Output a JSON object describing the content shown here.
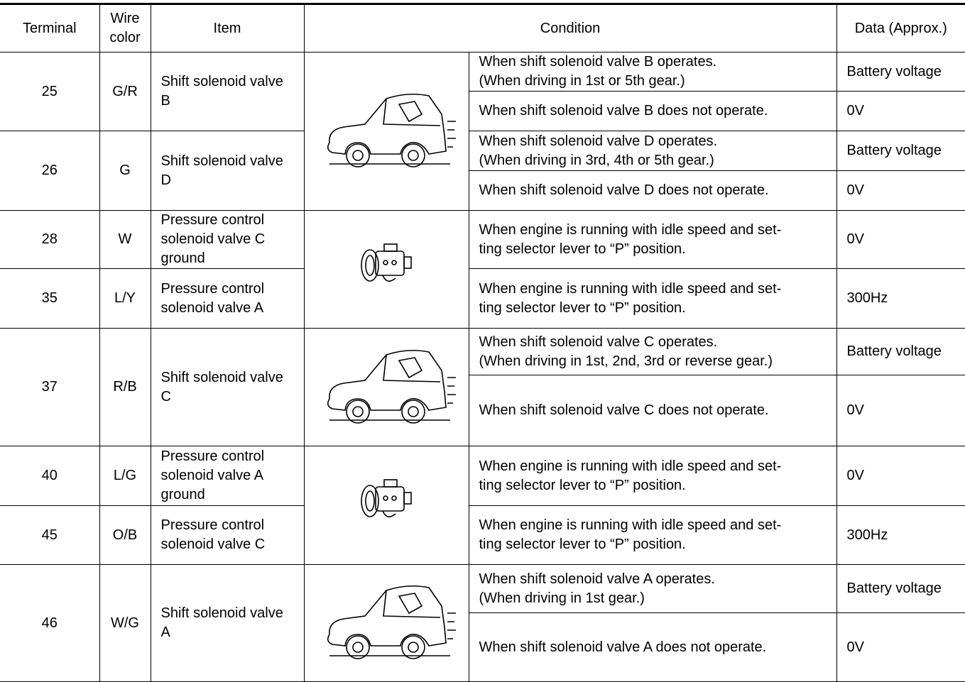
{
  "table": {
    "header": [
      "Terminal",
      "Wire color",
      "Item",
      "Condition",
      "Data (Approx.)"
    ],
    "rows": [
      {
        "terminal": "25",
        "wire_color": "G/R",
        "item": "Shift solenoid valve B",
        "conditions": [
          {
            "text": "When shift solenoid valve B operates.\n(When driving in 1st or 5th gear.)",
            "data": "Battery voltage"
          },
          {
            "text": "When shift solenoid valve B does not operate.",
            "data": "0V"
          }
        ]
      },
      {
        "terminal": "26",
        "wire_color": "G",
        "item": "Shift solenoid valve D",
        "conditions": [
          {
            "text": "When shift solenoid valve D operates.\n(When driving in 3rd, 4th or 5th gear.)",
            "data": "Battery voltage"
          },
          {
            "text": "When shift solenoid valve D does not operate.",
            "data": "0V"
          }
        ]
      },
      {
        "terminal": "28",
        "wire_color": "W",
        "item": "Pressure control solenoid valve C ground",
        "conditions": [
          {
            "text": "When engine is running with idle speed and set-\nting selector lever to “P” position.",
            "data": "0V"
          }
        ]
      },
      {
        "terminal": "35",
        "wire_color": "L/Y",
        "item": "Pressure control solenoid valve A",
        "conditions": [
          {
            "text": "When engine is running with idle speed and set-\nting selector lever to “P” position.",
            "data": "300Hz"
          }
        ]
      },
      {
        "terminal": "37",
        "wire_color": "R/B",
        "item": "Shift solenoid valve C",
        "conditions": [
          {
            "text": "When shift solenoid valve C operates.\n(When driving in 1st, 2nd, 3rd or reverse gear.)",
            "data": "Battery voltage"
          },
          {
            "text": "When shift solenoid valve C does not operate.",
            "data": "0V"
          }
        ]
      },
      {
        "terminal": "40",
        "wire_color": "L/G",
        "item": "Pressure control solenoid valve A ground",
        "conditions": [
          {
            "text": "When engine is running with idle speed and set-\nting selector lever to “P” position.",
            "data": "0V"
          }
        ]
      },
      {
        "terminal": "45",
        "wire_color": "O/B",
        "item": "Pressure control solenoid valve C",
        "conditions": [
          {
            "text": "When engine is running with idle speed and set-\nting selector lever to “P” position.",
            "data": "300Hz"
          }
        ]
      },
      {
        "terminal": "46",
        "wire_color": "W/G",
        "item": "Shift solenoid valve A",
        "conditions": [
          {
            "text": "When shift solenoid valve A operates.\n(When driving in 1st gear.)",
            "data": "Battery voltage"
          },
          {
            "text": "When shift solenoid valve A does not operate.",
            "data": "0V"
          }
        ]
      }
    ]
  }
}
